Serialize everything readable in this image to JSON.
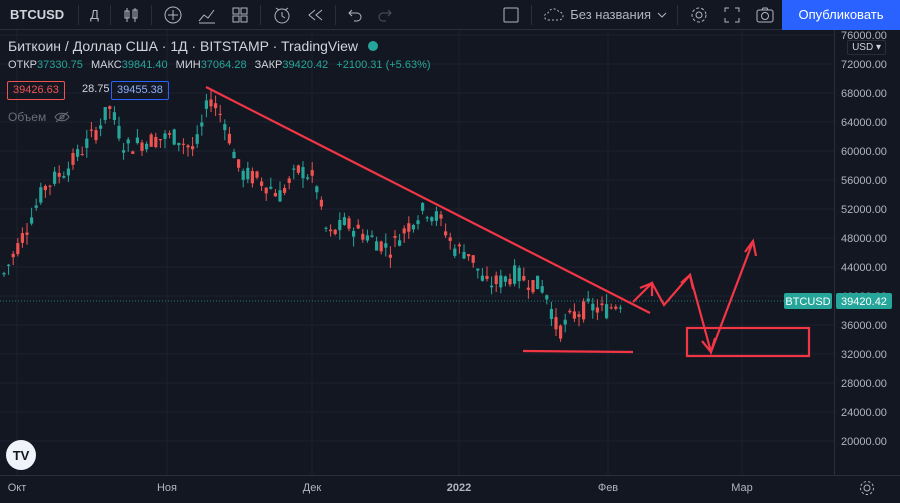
{
  "toolbar": {
    "symbol": "BTCUSD",
    "interval": "Д",
    "layout_name": "Без названия",
    "publish_label": "Опубликовать"
  },
  "legend": {
    "title": "Биткоин / Доллар США · 1Д · BITSTAMP · TradingView",
    "ohlc": [
      {
        "key": "ОТКР",
        "value": "37330.75"
      },
      {
        "key": "МАКС",
        "value": "39841.40"
      },
      {
        "key": "МИН",
        "value": "37064.28"
      },
      {
        "key": "ЗАКР",
        "value": "39420.42"
      }
    ],
    "change": "+2100.31 (+5.63%)",
    "sell_price": "39426.63",
    "spread": "28.75",
    "buy_price": "39455.38",
    "volume_label": "Объем"
  },
  "currency": "USD",
  "axis": {
    "price_ticks": [
      "76000.00",
      "72000.00",
      "68000.00",
      "64000.00",
      "60000.00",
      "56000.00",
      "52000.00",
      "48000.00",
      "44000.00",
      "40000.00",
      "36000.00",
      "32000.00",
      "28000.00",
      "24000.00",
      "20000.00"
    ],
    "last_label": "BTCUSD",
    "last_price": "39420.42",
    "time_ticks": [
      "Окт",
      "Ноя",
      "Дек",
      "2022",
      "Фев",
      "Мар"
    ]
  },
  "colors": {
    "up": "#26a69a",
    "down": "#ef5350",
    "drawing": "#f23645",
    "accent": "#2962ff"
  },
  "logo": "TV"
}
